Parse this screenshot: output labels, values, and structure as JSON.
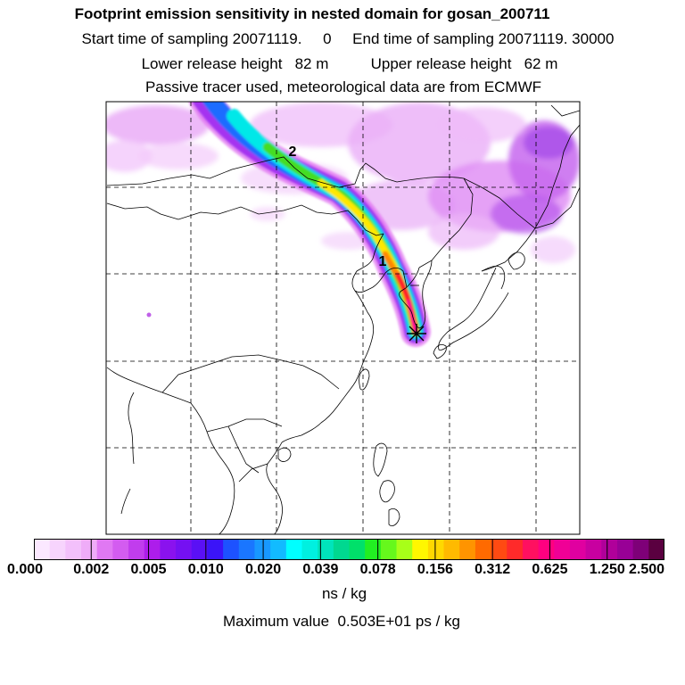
{
  "header": {
    "title": "Footprint emission sensitivity in nested domain for gosan_200711",
    "sampling": "Start time of sampling 20071119.     0     End time of sampling 20071119. 30000",
    "release": "Lower release height   82 m          Upper release height   62 m",
    "tracer": "Passive tracer used, meteorological data are from ECMWF"
  },
  "map": {
    "markers": [
      "1",
      "2"
    ],
    "receptor_icon": "asterisk-icon",
    "colors": {
      "plume_outer": "#e070f0",
      "plume_violet": "#9a22f0",
      "plume_blue": "#1d6cff",
      "plume_cyan": "#00e8e8",
      "plume_green": "#44dd22",
      "plume_yellow": "#ffe800",
      "plume_orange": "#ff8800",
      "plume_red": "#ff1a2a",
      "plume_magenta": "#ff0099"
    }
  },
  "colorbar": {
    "colors": [
      "#fbe8ff",
      "#f7d4fd",
      "#f3c0fb",
      "#efacf8",
      "#e078f3",
      "#d35cf0",
      "#c13ded",
      "#ad1deb",
      "#8a12ee",
      "#7510f2",
      "#5a10f5",
      "#3b14f8",
      "#1d52ff",
      "#1a76ff",
      "#1898ff",
      "#12bbff",
      "#00ffff",
      "#00f0e0",
      "#00e4bb",
      "#00d890",
      "#00e06a",
      "#22ee22",
      "#66f81c",
      "#a8ff18",
      "#fff700",
      "#ffd800",
      "#ffba00",
      "#ff9400",
      "#ff6a00",
      "#ff4a12",
      "#ff2a2a",
      "#ff1060",
      "#ff0080",
      "#f00096",
      "#e000a0",
      "#c800a0",
      "#b0009a",
      "#980096",
      "#7e0078",
      "#5a0040"
    ],
    "tick_labels": [
      "0.000",
      "0.002",
      "0.005",
      "0.010",
      "0.020",
      "0.039",
      "0.078",
      "0.156",
      "0.312",
      "0.625",
      "1.250",
      "2.500"
    ],
    "units": "ns / kg",
    "max_value": "Maximum value  0.503E+01 ps / kg"
  }
}
